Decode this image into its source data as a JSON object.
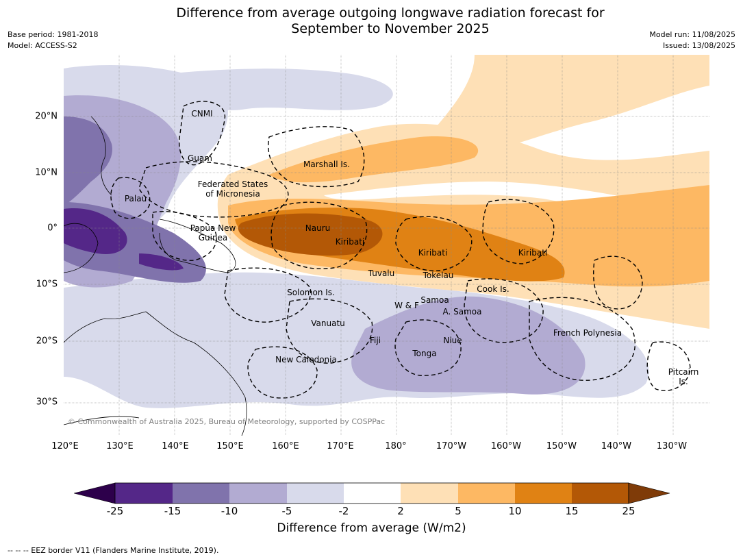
{
  "title": {
    "line1": "Difference from average outgoing longwave radiation forecast for",
    "line2": "September to November 2025"
  },
  "meta": {
    "base_period": "Base period: 1981-2018",
    "model": "Model: ACCESS-S2",
    "model_run": "Model run: 11/08/2025",
    "issued": "Issued: 13/08/2025"
  },
  "map": {
    "lat_labels": [
      "20°N",
      "10°N",
      "0°",
      "10°S",
      "20°S",
      "30°S"
    ],
    "lon_labels": [
      "120°E",
      "130°E",
      "140°E",
      "150°E",
      "160°E",
      "170°E",
      "180°",
      "170°W",
      "160°W",
      "150°W",
      "140°W",
      "130°W"
    ],
    "regions": {
      "cnmi": "CNMI",
      "guam": "Guam",
      "marshall": "Marshall Is.",
      "fsm_line1": "Federated States",
      "fsm_line2": "of Micronesia",
      "palau": "Palau",
      "png_line1": "Papua New",
      "png_line2": "Guinea",
      "nauru": "Nauru",
      "kiribati_west": "Kiribati",
      "kiribati_central": "Kiribati",
      "kiribati_east": "Kiribati",
      "tuvalu": "Tuvalu",
      "tokelau": "Tokelau",
      "cook": "Cook Is.",
      "solomon": "Solomon Is.",
      "wf": "W & F",
      "samoa": "Samoa",
      "a_samoa": "A. Samoa",
      "vanuatu": "Vanuatu",
      "fiji": "Fiji",
      "niue": "Niue",
      "tonga": "Tonga",
      "french_polynesia": "French Polynesia",
      "new_caledonia": "New Caledonia",
      "pitcairn_line1": "Pitcairn",
      "pitcairn_line2": "Is."
    },
    "copyright": "© Commonwealth of Australia 2025, Bureau of Meteorology, supported by COSPPac",
    "colors": {
      "lt_-15": "#542788",
      "-15_-10": "#8073ac",
      "-10_-5": "#b2abd2",
      "-5_-2": "#d8daeb",
      "-2_2": "#ffffff",
      "2_5": "#fee0b6",
      "5_10": "#fdb863",
      "10_15": "#e08214",
      "15_25": "#b35806",
      "lt_-25": "#2d004b",
      "gt_25": "#7f3b08"
    }
  },
  "colorbar": {
    "ticks": [
      "-25",
      "-15",
      "-10",
      "-5",
      "-2",
      "2",
      "5",
      "10",
      "15",
      "25"
    ],
    "title": "Difference from average (W/m2)"
  },
  "footnote": "--  --  -- EEZ border V11 (Flanders Marine Institute, 2019)."
}
